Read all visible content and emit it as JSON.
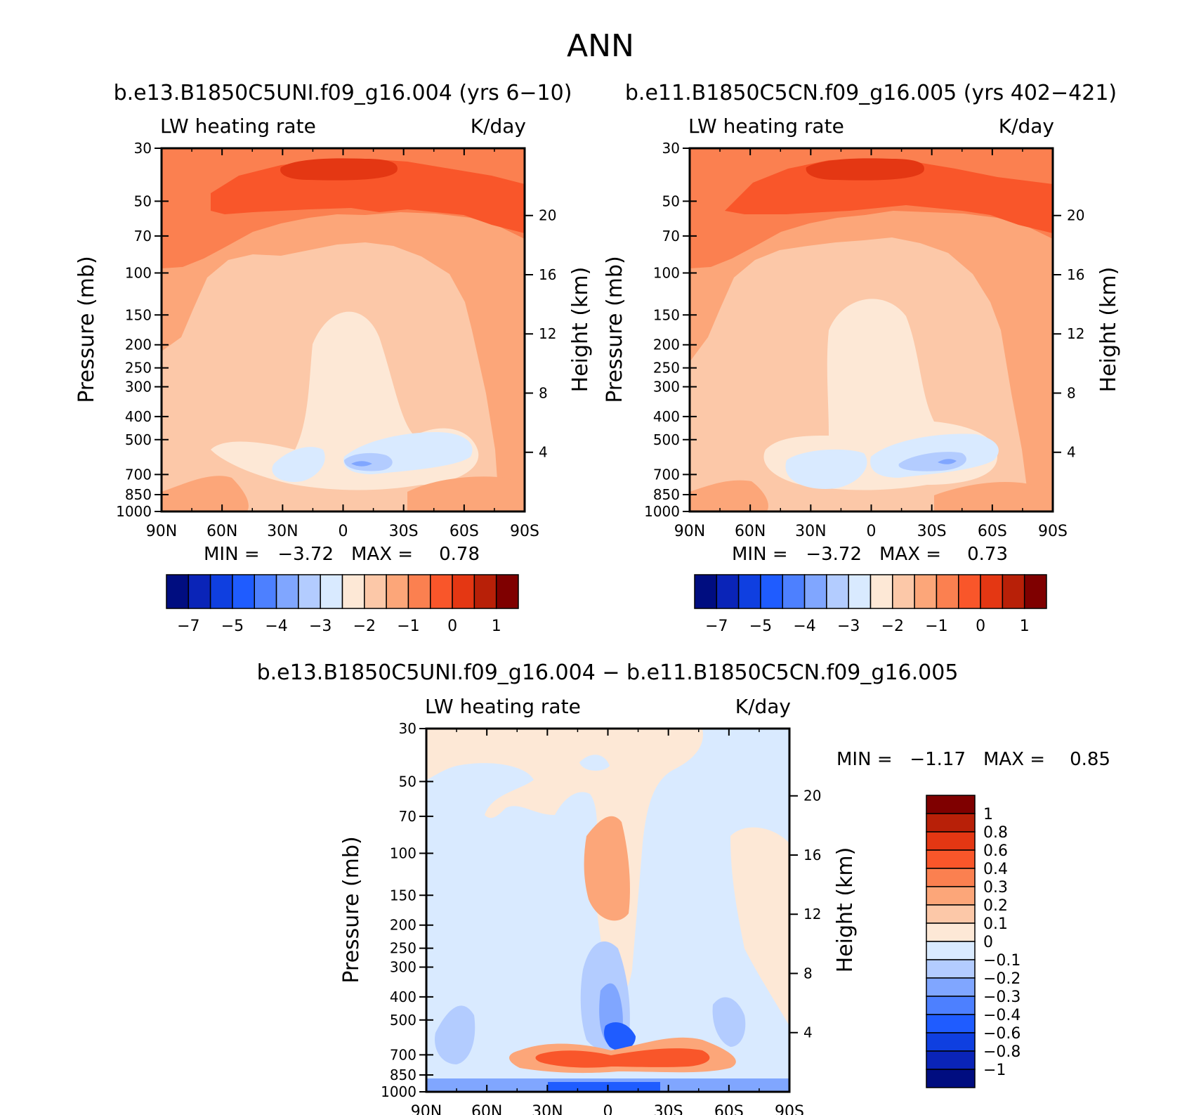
{
  "figure": {
    "title": "ANN",
    "panel1_caption": "b.e13.B1850C5UNI.f09_g16.004 (yrs 6−10)",
    "panel2_caption": "b.e11.B1850C5CN.f09_g16.005 (yrs 402−421)",
    "panel3_caption": "b.e13.B1850C5UNI.f09_g16.004 − b.e11.B1850C5CN.f09_g16.005"
  },
  "chart_data": [
    {
      "type": "contour",
      "id": "panel-1",
      "variable": "LW heating rate",
      "units": "K/day",
      "ylabel": "Pressure (mb)",
      "ylabel_right": "Height (km)",
      "x_ticks": [
        "90N",
        "60N",
        "30N",
        "0",
        "30S",
        "60S",
        "90S"
      ],
      "y_ticks": [
        "30",
        "50",
        "70",
        "100",
        "150",
        "200",
        "250",
        "300",
        "400",
        "500",
        "700",
        "850",
        "1000"
      ],
      "height_ticks": [
        "20",
        "16",
        "12",
        "8",
        "4"
      ],
      "min_label": "MIN =",
      "min": "−3.72",
      "max_label": "MAX =",
      "max": "0.78",
      "colorbar_labels": [
        "−7",
        "−5",
        "−4",
        "−3",
        "−2",
        "−1",
        "0",
        "1"
      ],
      "colorbar_colors": [
        "#000d80",
        "#0a24b8",
        "#0f3fe0",
        "#1f5cff",
        "#4d80ff",
        "#80a6ff",
        "#b3ccff",
        "#d9eaff",
        "#fde8d6",
        "#fcc8a8",
        "#fca679",
        "#fb8050",
        "#f9562a",
        "#e43713",
        "#b82008",
        "#7f0000"
      ]
    },
    {
      "type": "contour",
      "id": "panel-2",
      "variable": "LW heating rate",
      "units": "K/day",
      "ylabel": "Pressure (mb)",
      "ylabel_right": "Height (km)",
      "x_ticks": [
        "90N",
        "60N",
        "30N",
        "0",
        "30S",
        "60S",
        "90S"
      ],
      "y_ticks": [
        "30",
        "50",
        "70",
        "100",
        "150",
        "200",
        "250",
        "300",
        "400",
        "500",
        "700",
        "850",
        "1000"
      ],
      "height_ticks": [
        "20",
        "16",
        "12",
        "8",
        "4"
      ],
      "min_label": "MIN =",
      "min": "−3.72",
      "max_label": "MAX =",
      "max": "0.73",
      "colorbar_labels": [
        "−7",
        "−5",
        "−4",
        "−3",
        "−2",
        "−1",
        "0",
        "1"
      ],
      "colorbar_colors": [
        "#000d80",
        "#0a24b8",
        "#0f3fe0",
        "#1f5cff",
        "#4d80ff",
        "#80a6ff",
        "#b3ccff",
        "#d9eaff",
        "#fde8d6",
        "#fcc8a8",
        "#fca679",
        "#fb8050",
        "#f9562a",
        "#e43713",
        "#b82008",
        "#7f0000"
      ]
    },
    {
      "type": "contour",
      "id": "panel-3",
      "variable": "LW heating rate",
      "units": "K/day",
      "ylabel": "Pressure (mb)",
      "ylabel_right": "Height (km)",
      "x_ticks": [
        "90N",
        "60N",
        "30N",
        "0",
        "30S",
        "60S",
        "90S"
      ],
      "y_ticks": [
        "30",
        "50",
        "70",
        "100",
        "150",
        "200",
        "250",
        "300",
        "400",
        "500",
        "700",
        "850",
        "1000"
      ],
      "height_ticks": [
        "20",
        "16",
        "12",
        "8",
        "4"
      ],
      "min_label": "MIN =",
      "min": "−1.17",
      "max_label": "MAX =",
      "max": "0.85",
      "colorbar_labels": [
        "1",
        "0.8",
        "0.6",
        "0.4",
        "0.3",
        "0.2",
        "0.1",
        "0",
        "−0.1",
        "−0.2",
        "−0.3",
        "−0.4",
        "−0.6",
        "−0.8",
        "−1"
      ],
      "colorbar_colors": [
        "#7f0000",
        "#b82008",
        "#e43713",
        "#f9562a",
        "#fb8050",
        "#fca679",
        "#fcc8a8",
        "#fde8d6",
        "#d9eaff",
        "#b3ccff",
        "#80a6ff",
        "#4d80ff",
        "#1f5cff",
        "#0f3fe0",
        "#0a24b8",
        "#000d80"
      ]
    }
  ]
}
